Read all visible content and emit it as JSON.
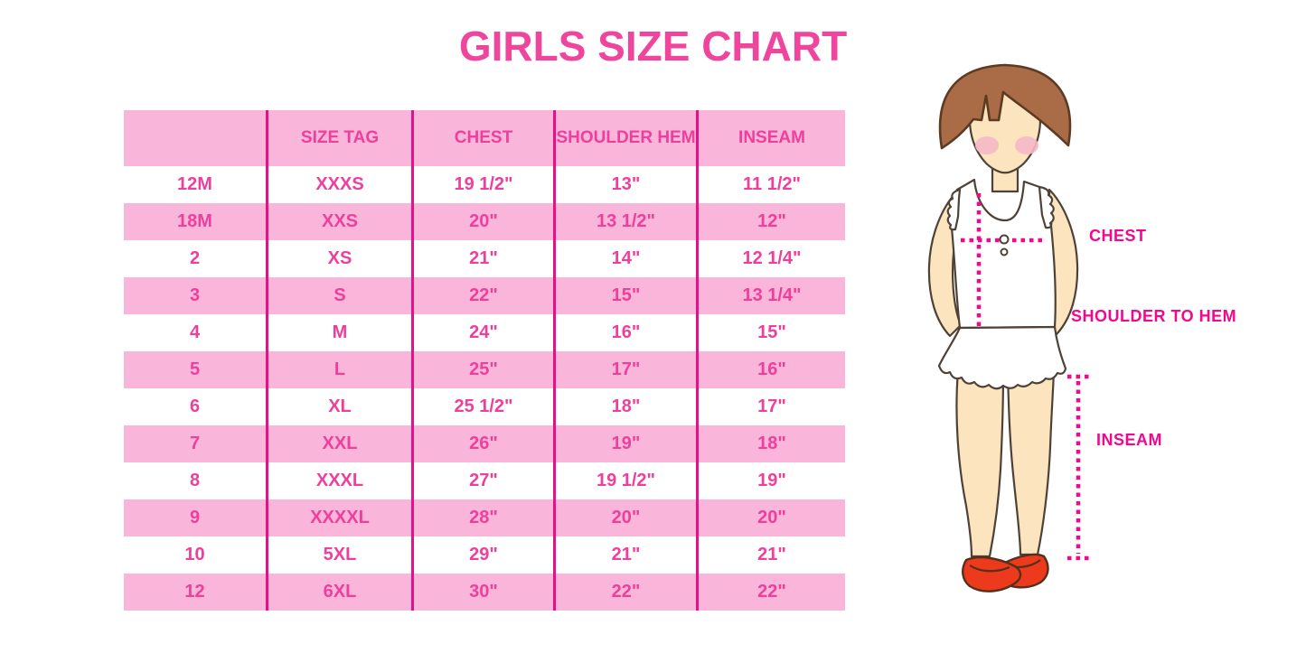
{
  "title": "GIRLS SIZE CHART",
  "table": {
    "columns": [
      "",
      "SIZE TAG",
      "CHEST",
      "SHOULDER HEM",
      "INSEAM"
    ],
    "rows": [
      [
        "12M",
        "XXXS",
        "19 1/2\"",
        "13\"",
        "11 1/2\""
      ],
      [
        "18M",
        "XXS",
        "20\"",
        "13 1/2\"",
        "12\""
      ],
      [
        "2",
        "XS",
        "21\"",
        "14\"",
        "12 1/4\""
      ],
      [
        "3",
        "S",
        "22\"",
        "15\"",
        "13 1/4\""
      ],
      [
        "4",
        "M",
        "24\"",
        "16\"",
        "15\""
      ],
      [
        "5",
        "L",
        "25\"",
        "17\"",
        "16\""
      ],
      [
        "6",
        "XL",
        "25 1/2\"",
        "18\"",
        "17\""
      ],
      [
        "7",
        "XXL",
        "26\"",
        "19\"",
        "18\""
      ],
      [
        "8",
        "XXXL",
        "27\"",
        "19 1/2\"",
        "19\""
      ],
      [
        "9",
        "XXXXL",
        "28\"",
        "20\"",
        "20\""
      ],
      [
        "10",
        "5XL",
        "29\"",
        "21\"",
        "21\""
      ],
      [
        "12",
        "6XL",
        "30\"",
        "22\"",
        "22\""
      ]
    ]
  },
  "figure": {
    "chest_label": "CHEST",
    "shoulder_to_hem_label": "SHOULDER TO HEM",
    "inseam_label": "INSEAM"
  },
  "colors": {
    "title": "#F0459C",
    "row_pink": "#F9B6DA",
    "cell_text": "#EE3F9C",
    "grid_line": "#E5118B",
    "measure_magenta": "#F2078E",
    "hair_brown": "#A96C47",
    "hair_outline": "#5D3A22",
    "skin": "#FBE4BE",
    "blush": "#F6B8C6",
    "outline": "#4E4238",
    "shoe_red": "#EE3A1C"
  }
}
